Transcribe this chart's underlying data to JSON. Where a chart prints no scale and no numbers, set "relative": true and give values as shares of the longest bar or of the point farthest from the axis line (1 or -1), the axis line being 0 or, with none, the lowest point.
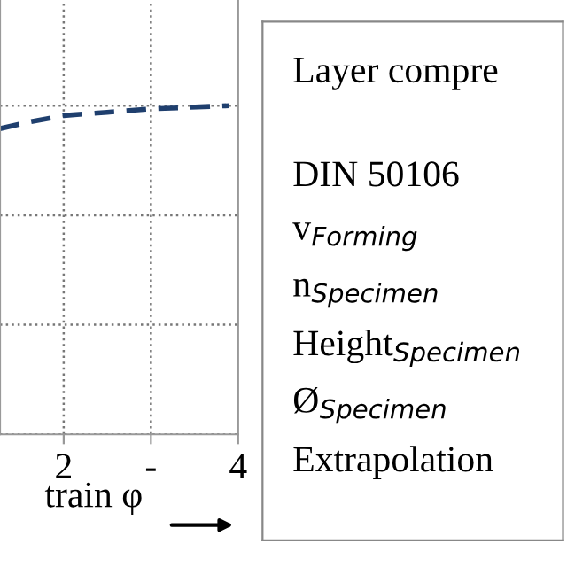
{
  "chart_data": [
    {
      "type": "line",
      "relative": true,
      "xlabel": "train φ",
      "xlim": [
        1.27,
        4
      ],
      "xticks": [
        2,
        {
          "value": 3,
          "label": "-"
        },
        4
      ],
      "tick_labels": "x",
      "grid": true,
      "line_style": "dashed",
      "marker": "none",
      "series": [
        {
          "color": "#1f3f6e",
          "x": [
            1.27,
            1.6,
            2,
            2.5,
            3,
            3.9
          ],
          "values": [
            0.93,
            0.95,
            0.97,
            0.98,
            0.99,
            1.0
          ]
        }
      ]
    },
    {
      "type": "other",
      "annotations": [
        "Layer compre",
        "DIN 50106",
        "v$_{Forming}$",
        "n$_{Specimen}$",
        "Height$_{Specimen}$",
        "Ø$_{Specimen}$",
        "Extrapolation"
      ]
    }
  ]
}
